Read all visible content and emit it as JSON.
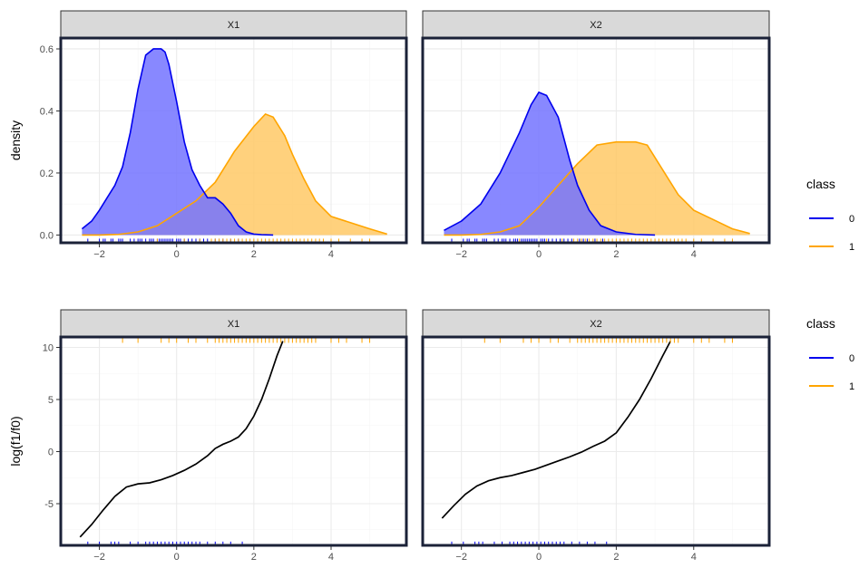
{
  "chart_data": [
    {
      "type": "area",
      "panels": [
        {
          "strip": "X1",
          "series": [
            {
              "class": "0",
              "color": "#0000EE",
              "fill": "#7373FF",
              "x": [
                -2.45,
                -2.2,
                -2.0,
                -1.8,
                -1.6,
                -1.4,
                -1.2,
                -1.0,
                -0.8,
                -0.6,
                -0.4,
                -0.3,
                -0.2,
                0.0,
                0.2,
                0.4,
                0.6,
                0.8,
                1.0,
                1.2,
                1.4,
                1.6,
                1.8,
                2.0,
                2.2,
                2.5
              ],
              "y": [
                0.02,
                0.045,
                0.08,
                0.12,
                0.16,
                0.22,
                0.33,
                0.47,
                0.58,
                0.6,
                0.6,
                0.59,
                0.55,
                0.43,
                0.3,
                0.21,
                0.16,
                0.12,
                0.12,
                0.1,
                0.07,
                0.03,
                0.01,
                0.003,
                0.001,
                0.0
              ]
            },
            {
              "class": "1",
              "color": "#FFA500",
              "fill": "#FFC966",
              "x": [
                -2.45,
                -2.0,
                -1.5,
                -1.0,
                -0.5,
                0.0,
                0.5,
                1.0,
                1.5,
                2.0,
                2.3,
                2.5,
                2.8,
                3.0,
                3.3,
                3.6,
                4.0,
                4.5,
                5.0,
                5.45
              ],
              "y": [
                0.0,
                0.0,
                0.002,
                0.01,
                0.03,
                0.07,
                0.11,
                0.17,
                0.27,
                0.35,
                0.39,
                0.38,
                0.32,
                0.26,
                0.18,
                0.11,
                0.06,
                0.04,
                0.02,
                0.003
              ]
            }
          ]
        },
        {
          "strip": "X2",
          "series": [
            {
              "class": "0",
              "color": "#0000EE",
              "fill": "#7373FF",
              "x": [
                -2.45,
                -2.0,
                -1.5,
                -1.0,
                -0.5,
                -0.2,
                0.0,
                0.2,
                0.5,
                0.8,
                1.0,
                1.3,
                1.6,
                2.0,
                2.5,
                3.0
              ],
              "y": [
                0.015,
                0.045,
                0.1,
                0.2,
                0.33,
                0.42,
                0.46,
                0.45,
                0.38,
                0.24,
                0.16,
                0.08,
                0.03,
                0.01,
                0.002,
                0.0
              ]
            },
            {
              "class": "1",
              "color": "#FFA500",
              "fill": "#FFC966",
              "x": [
                -2.45,
                -2.0,
                -1.5,
                -1.0,
                -0.5,
                0.0,
                0.5,
                1.0,
                1.5,
                2.0,
                2.5,
                2.8,
                3.2,
                3.6,
                4.0,
                4.5,
                5.0,
                5.45
              ],
              "y": [
                0.0,
                0.0,
                0.002,
                0.01,
                0.03,
                0.09,
                0.16,
                0.23,
                0.29,
                0.3,
                0.3,
                0.29,
                0.21,
                0.13,
                0.08,
                0.05,
                0.02,
                0.005
              ]
            }
          ]
        }
      ],
      "xlim": [
        -3.0,
        5.95
      ],
      "ylim": [
        -0.025,
        0.635
      ],
      "xticks": [
        -2,
        0,
        2,
        4
      ],
      "yticks": [
        0.0,
        0.2,
        0.4,
        0.6
      ],
      "ytick_labels": [
        "0.0",
        "0.2",
        "0.4",
        "0.6"
      ],
      "ylabel": "density",
      "xlabel": "",
      "rug": {
        "class0": [
          -2.3,
          -2.0,
          -1.9,
          -1.85,
          -1.7,
          -1.65,
          -1.5,
          -1.45,
          -1.4,
          -1.2,
          -1.1,
          -1.0,
          -0.95,
          -0.9,
          -0.8,
          -0.7,
          -0.65,
          -0.6,
          -0.5,
          -0.45,
          -0.4,
          -0.35,
          -0.3,
          -0.25,
          -0.2,
          -0.15,
          -0.1,
          0.0,
          0.05,
          0.1,
          0.2,
          0.3,
          0.4,
          0.5,
          0.6,
          0.7,
          0.8,
          1.0,
          1.1,
          1.2,
          1.4,
          1.6
        ],
        "class1": [
          -0.5,
          0.2,
          0.6,
          0.9,
          1.0,
          1.1,
          1.2,
          1.3,
          1.4,
          1.5,
          1.6,
          1.7,
          1.8,
          1.9,
          2.0,
          2.1,
          2.2,
          2.3,
          2.4,
          2.5,
          2.6,
          2.7,
          2.8,
          2.9,
          3.0,
          3.1,
          3.2,
          3.3,
          3.4,
          3.5,
          3.6,
          3.7,
          3.8,
          4.0,
          4.2,
          4.5,
          4.8,
          5.0
        ]
      }
    },
    {
      "type": "line",
      "panels": [
        {
          "strip": "X1",
          "curve": {
            "color": "#000000",
            "x": [
              -2.5,
              -2.2,
              -1.9,
              -1.6,
              -1.3,
              -1.0,
              -0.7,
              -0.4,
              -0.1,
              0.2,
              0.5,
              0.8,
              1.0,
              1.2,
              1.4,
              1.6,
              1.8,
              2.0,
              2.2,
              2.4,
              2.6,
              2.75
            ],
            "y": [
              -8.2,
              -7.0,
              -5.6,
              -4.3,
              -3.4,
              -3.1,
              -3.0,
              -2.7,
              -2.3,
              -1.8,
              -1.2,
              -0.4,
              0.3,
              0.7,
              1.0,
              1.4,
              2.2,
              3.4,
              5.0,
              7.0,
              9.2,
              10.6
            ]
          }
        },
        {
          "strip": "X2",
          "curve": {
            "color": "#000000",
            "x": [
              -2.5,
              -2.2,
              -1.9,
              -1.6,
              -1.3,
              -1.0,
              -0.7,
              -0.4,
              -0.1,
              0.2,
              0.5,
              0.8,
              1.1,
              1.4,
              1.7,
              2.0,
              2.3,
              2.6,
              2.9,
              3.2,
              3.4
            ],
            "y": [
              -6.4,
              -5.2,
              -4.1,
              -3.3,
              -2.8,
              -2.5,
              -2.3,
              -2.0,
              -1.7,
              -1.3,
              -0.9,
              -0.5,
              -0.05,
              0.5,
              1.0,
              1.8,
              3.3,
              5.0,
              7.0,
              9.2,
              10.6
            ]
          }
        }
      ],
      "xlim": [
        -3.0,
        5.95
      ],
      "ylim": [
        -9.0,
        11.0
      ],
      "xticks": [
        -2,
        0,
        2,
        4
      ],
      "yticks": [
        -5,
        0,
        5,
        10
      ],
      "ytick_labels": [
        "-5",
        "0",
        "5",
        "10"
      ],
      "ylabel": "log(f1/f0)",
      "xlabel": "",
      "rug": {
        "class0_y": -8.9,
        "class1_y": 10.7,
        "class0": [
          -2.3,
          -2.0,
          -1.7,
          -1.6,
          -1.5,
          -1.2,
          -1.0,
          -0.8,
          -0.7,
          -0.6,
          -0.5,
          -0.4,
          -0.3,
          -0.2,
          -0.1,
          0.0,
          0.1,
          0.2,
          0.3,
          0.4,
          0.5,
          0.6,
          0.8,
          1.0,
          1.2,
          1.4,
          1.7
        ],
        "class1": [
          -1.4,
          -1.0,
          -0.4,
          -0.2,
          0.0,
          0.3,
          0.5,
          0.8,
          1.0,
          1.1,
          1.2,
          1.3,
          1.4,
          1.5,
          1.6,
          1.7,
          1.8,
          1.9,
          2.0,
          2.1,
          2.2,
          2.3,
          2.4,
          2.5,
          2.6,
          2.7,
          2.8,
          2.9,
          3.0,
          3.1,
          3.2,
          3.3,
          3.4,
          3.5,
          3.6,
          4.0,
          4.2,
          4.4,
          4.8,
          5.0
        ]
      }
    }
  ],
  "x_tick_labels": [
    "−2",
    "0",
    "2",
    "4"
  ],
  "y_tick_minus": "−",
  "legend": {
    "title": "class",
    "entries": [
      {
        "label": "0",
        "color": "#0000EE"
      },
      {
        "label": "1",
        "color": "#FFA500"
      }
    ]
  },
  "colors": {
    "panel_border": "#1B2238",
    "strip_bg": "#D9D9D9",
    "strip_border": "#333333",
    "grid_major": "#EBEBEB",
    "grid_minor": "#F5F5F5",
    "overlap_stroke": "#7A2E6E"
  }
}
